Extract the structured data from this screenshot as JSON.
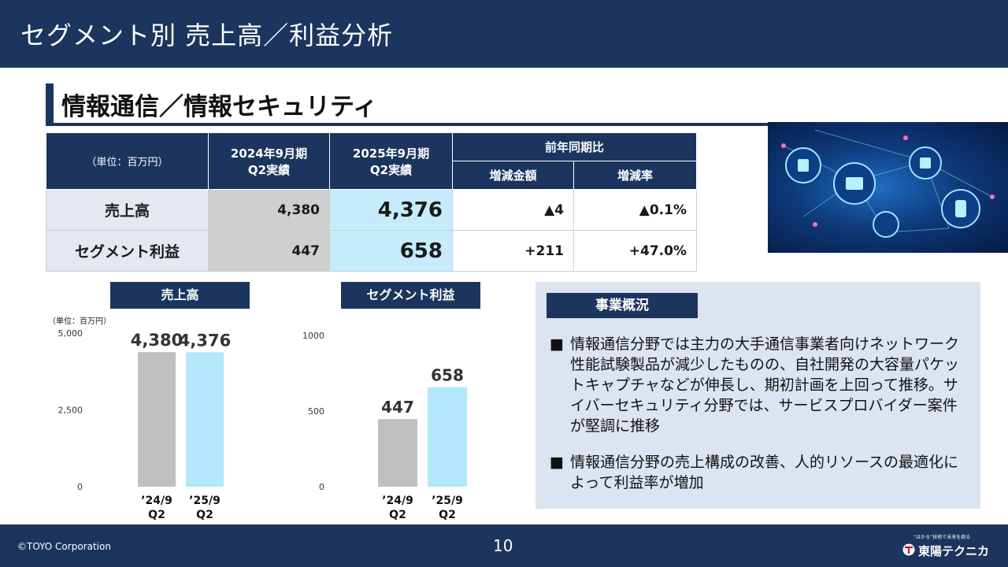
{
  "header": {
    "title": "セグメント別 売上高／利益分析"
  },
  "section": {
    "title": "情報通信／情報セキュリティ"
  },
  "table": {
    "unit": "（単位：百万円）",
    "col_2024": "2024年9月期",
    "col_2024_sub": "Q2実績",
    "col_2025": "2025年9月期",
    "col_2025_sub": "Q2実績",
    "col_yoy": "前年同期比",
    "col_diff": "増減金額",
    "col_rate": "増減率",
    "rows": [
      {
        "label": "売上高",
        "v2024": "4,380",
        "v2025": "4,376",
        "diff": "▲4",
        "rate": "▲0.1%"
      },
      {
        "label": "セグメント利益",
        "v2024": "447",
        "v2025": "658",
        "diff": "+211",
        "rate": "+47.0%"
      }
    ]
  },
  "chart_data": [
    {
      "type": "bar",
      "title": "売上高",
      "unit": "（単位：百万円）",
      "categories": [
        "’24/9 Q2",
        "’25/9 Q2"
      ],
      "cat_line1": [
        "’24/9",
        "’25/9"
      ],
      "cat_line2": [
        "Q2",
        "Q2"
      ],
      "values": [
        4380,
        4376
      ],
      "value_labels": [
        "4,380",
        "4,376"
      ],
      "colors": [
        "#bfbfbf",
        "#b3e7fb"
      ],
      "ylim": [
        0,
        5000
      ],
      "yticks": [
        0,
        2500,
        5000
      ],
      "ytick_labels": [
        "0",
        "2,500",
        "5,000"
      ]
    },
    {
      "type": "bar",
      "title": "セグメント利益",
      "categories": [
        "’24/9 Q2",
        "’25/9 Q2"
      ],
      "cat_line1": [
        "’24/9",
        "’25/9"
      ],
      "cat_line2": [
        "Q2",
        "Q2"
      ],
      "values": [
        447,
        658
      ],
      "value_labels": [
        "447",
        "658"
      ],
      "colors": [
        "#bfbfbf",
        "#b3e7fb"
      ],
      "ylim": [
        0,
        1000
      ],
      "yticks": [
        0,
        500,
        1000
      ],
      "ytick_labels": [
        "0",
        "500",
        "1000"
      ]
    }
  ],
  "overview": {
    "title": "事業概況",
    "bullets": [
      {
        "mark": "■",
        "text": "情報通信分野では主力の大手通信事業者向けネットワーク性能試験製品が減少したものの、自社開発の大容量パケットキャプチャなどが伸長し、期初計画を上回って推移。サイバーセキュリティ分野では、サービスプロバイダー案件が堅調に推移"
      },
      {
        "mark": "■",
        "text": "情報通信分野の売上構成の改善、人的リソースの最適化によって利益率が増加"
      }
    ]
  },
  "footer": {
    "copyright": "©TOYO Corporation",
    "page": "10",
    "tagline": "“はかる”技術で未来を創る",
    "brand": "東陽テクニカ"
  }
}
